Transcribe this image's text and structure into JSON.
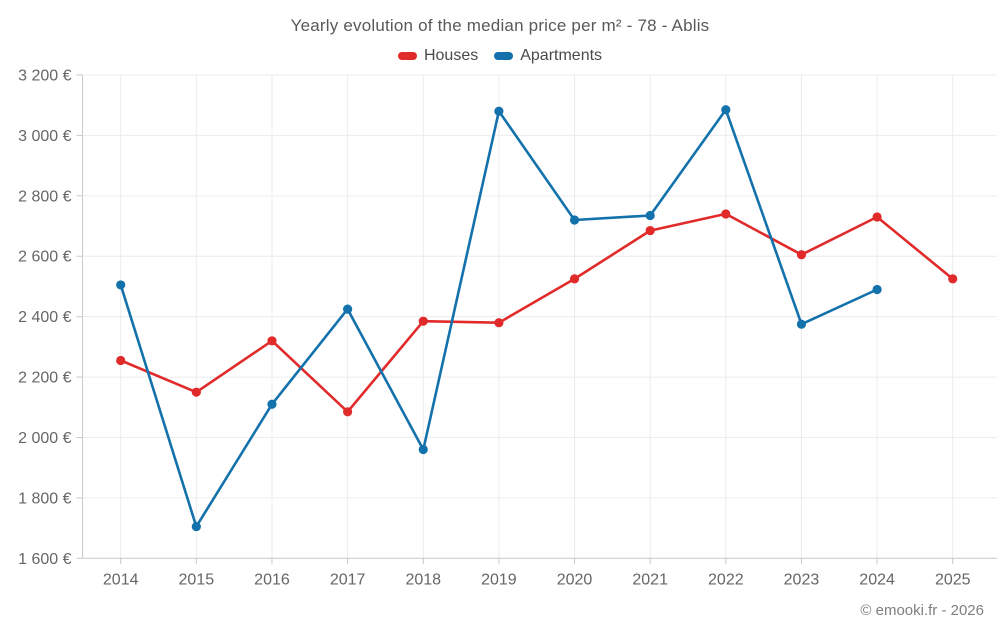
{
  "title": "Yearly evolution of the median price per m² - 78 - Ablis",
  "footer": "© emooki.fr - 2026",
  "colors": {
    "houses": "#e12b2b",
    "apartments": "#1371ab",
    "grid": "#ececec",
    "axis": "#c9c9c9",
    "tick_text": "#666666",
    "title_text": "#595959"
  },
  "chart_data": {
    "type": "line",
    "title": "Yearly evolution of the median price per m² - 78 - Ablis",
    "x": [
      2014,
      2015,
      2016,
      2017,
      2018,
      2019,
      2020,
      2021,
      2022,
      2023,
      2024,
      2025
    ],
    "series": [
      {
        "name": "Houses",
        "color": "#e12b2b",
        "values": [
          2255,
          2150,
          2320,
          2085,
          2385,
          2380,
          2525,
          2685,
          2740,
          2605,
          2730,
          2525
        ]
      },
      {
        "name": "Apartments",
        "color": "#1371ab",
        "values": [
          2505,
          1705,
          2110,
          2425,
          1960,
          3080,
          2720,
          2735,
          3085,
          2375,
          2490,
          null
        ]
      }
    ],
    "xlabel": "",
    "ylabel": "",
    "ylim": [
      1600,
      3200
    ],
    "ytick_step": 200,
    "ytick_labels": [
      "1 600 €",
      "1 800 €",
      "2 000 €",
      "2 200 €",
      "2 400 €",
      "2 600 €",
      "2 800 €",
      "3 000 €",
      "3 200 €"
    ],
    "currency_suffix": " €",
    "grid": true,
    "legend_position": "top",
    "legend": [
      "Houses",
      "Apartments"
    ]
  }
}
